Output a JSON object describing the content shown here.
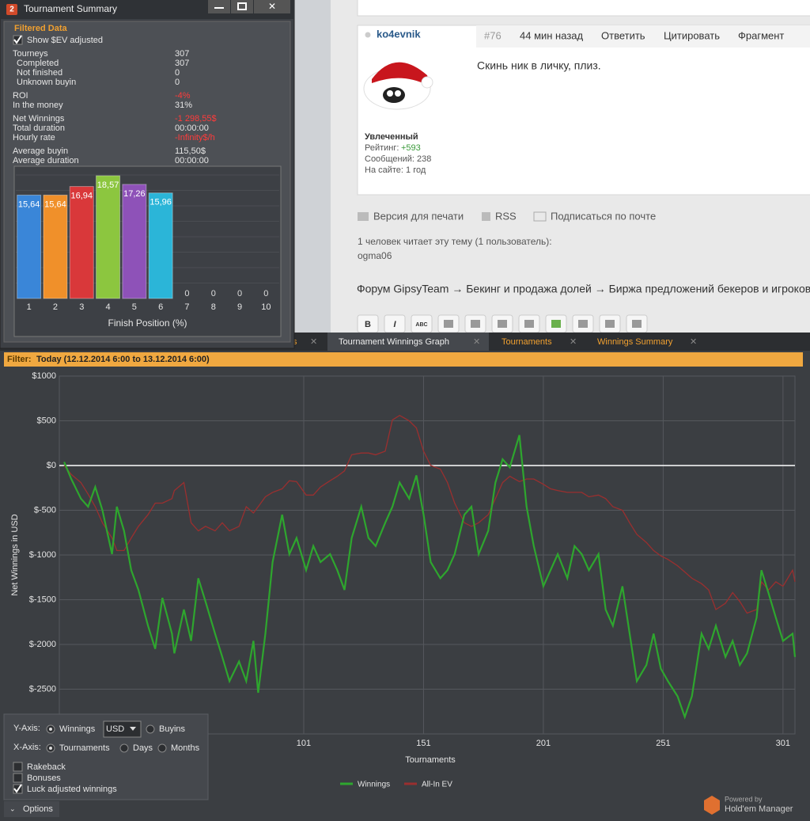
{
  "window": {
    "title": "Tournament Summary",
    "section": "Filtered Data",
    "checkbox": "Show $EV adjusted",
    "stats": [
      {
        "label": "Tourneys",
        "value": "307"
      },
      {
        "label": "Completed",
        "value": "307"
      },
      {
        "label": "Not finished",
        "value": "0"
      },
      {
        "label": "Unknown buyin",
        "value": "0"
      },
      {
        "label": "ROI",
        "value": "-4%",
        "color": "#ff3b3b"
      },
      {
        "label": "In the money",
        "value": "31%"
      },
      {
        "label": "Net Winnings",
        "value": "-1 298,55$",
        "color": "#ff3b3b"
      },
      {
        "label": "Total duration",
        "value": "00:00:00"
      },
      {
        "label": "Hourly rate",
        "value": "-Infinity$/h",
        "color": "#ff3b3b"
      },
      {
        "label": "Average buyin",
        "value": "115,50$"
      },
      {
        "label": "Average duration",
        "value": "00:00:00"
      }
    ]
  },
  "chart_data": [
    {
      "type": "bar",
      "categories": [
        "1",
        "2",
        "3",
        "4",
        "5",
        "6",
        "7",
        "8",
        "9",
        "10"
      ],
      "values": [
        15.64,
        15.64,
        16.94,
        18.57,
        17.26,
        15.96,
        0,
        0,
        0,
        0
      ],
      "value_labels": [
        "15,64",
        "15,64",
        "16,94",
        "18,57",
        "17,26",
        "15,96",
        "0",
        "0",
        "0",
        "0"
      ],
      "colors": [
        "#3a86d8",
        "#f0902a",
        "#d9383a",
        "#8cc63f",
        "#8e52b8",
        "#2bb5d8",
        "#2bb5d8",
        "#2bb5d8",
        "#2bb5d8",
        "#2bb5d8"
      ],
      "xlabel": "Finish Position (%)",
      "ylim": [
        0,
        20
      ]
    },
    {
      "type": "line",
      "x": [
        1,
        4,
        8,
        11,
        14,
        17,
        21,
        23,
        26,
        29,
        32,
        36,
        39,
        42,
        46,
        47,
        51,
        54,
        57,
        60,
        64,
        67,
        70,
        74,
        77,
        80,
        82,
        85,
        88,
        92,
        95,
        98,
        102,
        105,
        108,
        112,
        115,
        118,
        121,
        125,
        128,
        131,
        135,
        138,
        141,
        145,
        148,
        151,
        154,
        158,
        161,
        164,
        168,
        171,
        174,
        178,
        181,
        184,
        187,
        191,
        194,
        197,
        201,
        204,
        207,
        211,
        214,
        217,
        220,
        224,
        227,
        230,
        234,
        237,
        240,
        244,
        247,
        250,
        253,
        257,
        260,
        263,
        267,
        270,
        273,
        277,
        280,
        283,
        286,
        290,
        292,
        295,
        298,
        301,
        305,
        306
      ],
      "series": [
        {
          "name": "Winnings",
          "color": "#2ea62e",
          "values": [
            40,
            -150,
            -370,
            -460,
            -240,
            -500,
            -990,
            -460,
            -730,
            -1170,
            -1390,
            -1790,
            -2050,
            -1480,
            -1880,
            -2100,
            -1610,
            -1960,
            -1260,
            -1520,
            -1880,
            -2140,
            -2410,
            -2190,
            -2410,
            -1960,
            -2540,
            -1880,
            -1080,
            -550,
            -990,
            -810,
            -1170,
            -900,
            -1080,
            -990,
            -1170,
            -1390,
            -810,
            -460,
            -810,
            -900,
            -640,
            -460,
            -190,
            -370,
            -110,
            -550,
            -1080,
            -1260,
            -1170,
            -990,
            -550,
            -460,
            -990,
            -730,
            -190,
            70,
            -20,
            340,
            -460,
            -900,
            -1350,
            -1170,
            -990,
            -1260,
            -900,
            -990,
            -1170,
            -990,
            -1610,
            -1790,
            -1350,
            -1880,
            -2410,
            -2230,
            -1880,
            -2270,
            -2410,
            -2580,
            -2810,
            -2580,
            -1880,
            -2050,
            -1790,
            -2140,
            -1960,
            -2230,
            -2100,
            -1700,
            -1170,
            -1430,
            -1700,
            -1960,
            -1880,
            -2140
          ]
        },
        {
          "name": "All-In EV",
          "color": "#9a2f2f",
          "values": [
            0,
            -100,
            -190,
            -320,
            -460,
            -640,
            -810,
            -950,
            -950,
            -810,
            -680,
            -550,
            -420,
            -420,
            -370,
            -280,
            -190,
            -640,
            -730,
            -680,
            -730,
            -640,
            -730,
            -680,
            -460,
            -530,
            -460,
            -350,
            -300,
            -260,
            -170,
            -180,
            -330,
            -330,
            -240,
            -170,
            -120,
            -60,
            120,
            140,
            140,
            120,
            160,
            510,
            560,
            500,
            420,
            160,
            0,
            -40,
            -190,
            -420,
            -640,
            -680,
            -640,
            -550,
            -370,
            -190,
            -120,
            -180,
            -150,
            -150,
            -210,
            -260,
            -280,
            -300,
            -300,
            -300,
            -350,
            -330,
            -370,
            -460,
            -500,
            -640,
            -770,
            -860,
            -950,
            -1010,
            -1050,
            -1120,
            -1190,
            -1260,
            -1320,
            -1390,
            -1610,
            -1540,
            -1420,
            -1520,
            -1650,
            -1610,
            -1300,
            -1390,
            -1300,
            -1350,
            -1170,
            -1300
          ]
        }
      ],
      "xlim": [
        -1,
        306
      ],
      "ylim": [
        -3000,
        1000
      ],
      "xticks": [
        101,
        151,
        201,
        251,
        301
      ],
      "yticks": [
        {
          "value": 1000,
          "label": "$1000"
        },
        {
          "value": 500,
          "label": "$500"
        },
        {
          "value": 0,
          "label": "$0"
        },
        {
          "value": -500,
          "label": "$-500"
        },
        {
          "value": -1000,
          "label": "$-1000"
        },
        {
          "value": -1500,
          "label": "$-1500"
        },
        {
          "value": -2000,
          "label": "$-2000"
        },
        {
          "value": -2500,
          "label": "$-2500"
        }
      ],
      "xlabel": "Tournaments",
      "ylabel": "Net Winnings in USD",
      "grid": true,
      "legend": "bottom"
    }
  ],
  "forum": {
    "user": "ko4evnik",
    "post_no": "#76",
    "time": "44 мин назад",
    "actions": [
      "Ответить",
      "Цитировать",
      "Фрагмент"
    ],
    "message": "Скинь ник в личку, плиз.",
    "status": "Увлеченный",
    "rating_label": "Рейтинг:",
    "rating": "+593",
    "posts": "Сообщений: 238",
    "online": "На сайте: 1 год",
    "links": [
      "Версия для печати",
      "RSS",
      "Подписаться по почте"
    ],
    "readers": "1 человек читает эту тему (1 пользователь):",
    "reader": "ogma06",
    "breadcrumb": "Форум GipsyTeam → Бекинг и продажа долей → Биржа предложений бекеров и игроков",
    "toolbar": [
      "B",
      "I",
      "ABC"
    ]
  },
  "tabs": [
    "s",
    "Tournament Winnings Graph",
    "Tournaments",
    "Winnings Summary"
  ],
  "filter": {
    "label": "Filter:",
    "value": "Today (12.12.2014 6:00 to 13.12.2014 6:00)"
  },
  "options": {
    "y_axis": "Y-Axis:",
    "winnings": "Winnings",
    "currency": "USD",
    "buyins": "Buyins",
    "x_axis": "X-Axis:",
    "tournaments": "Tournaments",
    "days": "Days",
    "months": "Months",
    "checks": [
      "Rakeback",
      "Bonuses",
      "Luck adjusted winnings"
    ],
    "button": "Options"
  },
  "branding": {
    "powered": "Powered by",
    "product": "Hold'em Manager"
  }
}
